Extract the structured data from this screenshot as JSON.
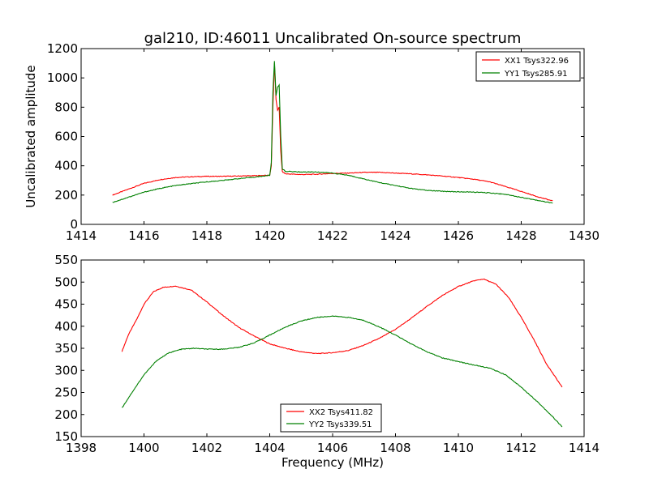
{
  "figure": {
    "title": "gal210, ID:46011 Uncalibrated On-source spectrum"
  },
  "chart_data": [
    {
      "type": "line",
      "title": "gal210, ID:46011 Uncalibrated On-source spectrum",
      "xlabel": "",
      "ylabel": "Uncalibrated amplitude",
      "xlim": [
        1414,
        1430
      ],
      "ylim": [
        0,
        1200
      ],
      "xticks": [
        1414,
        1416,
        1418,
        1420,
        1422,
        1424,
        1426,
        1428,
        1430
      ],
      "yticks": [
        0,
        200,
        400,
        600,
        800,
        1000,
        1200
      ],
      "legend_position": "top-right",
      "grid": false,
      "series": [
        {
          "name": "XX1 Tsys322.96",
          "color": "#ff0000",
          "x": [
            1415.0,
            1415.5,
            1416.0,
            1416.5,
            1417.0,
            1417.5,
            1418.0,
            1418.5,
            1419.0,
            1419.5,
            1420.0,
            1420.05,
            1420.1,
            1420.15,
            1420.2,
            1420.25,
            1420.3,
            1420.35,
            1420.4,
            1420.5,
            1421.0,
            1421.5,
            1422.0,
            1422.5,
            1423.0,
            1423.5,
            1424.0,
            1424.5,
            1425.0,
            1425.5,
            1426.0,
            1426.5,
            1427.0,
            1427.5,
            1428.0,
            1428.5,
            1429.0
          ],
          "y": [
            200,
            240,
            280,
            305,
            320,
            325,
            328,
            328,
            330,
            332,
            335,
            400,
            800,
            1100,
            850,
            780,
            800,
            500,
            360,
            345,
            340,
            342,
            348,
            350,
            355,
            355,
            350,
            345,
            338,
            330,
            320,
            308,
            290,
            258,
            225,
            190,
            160
          ]
        },
        {
          "name": "YY1 Tsys285.91",
          "color": "#008000",
          "x": [
            1415.0,
            1415.5,
            1416.0,
            1416.5,
            1417.0,
            1417.5,
            1418.0,
            1418.5,
            1419.0,
            1419.5,
            1420.0,
            1420.05,
            1420.1,
            1420.15,
            1420.2,
            1420.25,
            1420.3,
            1420.35,
            1420.4,
            1420.5,
            1421.0,
            1421.5,
            1422.0,
            1422.5,
            1423.0,
            1423.5,
            1424.0,
            1424.5,
            1425.0,
            1425.5,
            1426.0,
            1426.5,
            1427.0,
            1427.5,
            1428.0,
            1428.5,
            1429.0
          ],
          "y": [
            150,
            185,
            220,
            245,
            265,
            278,
            290,
            300,
            312,
            322,
            335,
            420,
            900,
            1115,
            880,
            940,
            950,
            600,
            380,
            362,
            358,
            358,
            350,
            335,
            310,
            285,
            265,
            245,
            232,
            226,
            222,
            220,
            215,
            205,
            185,
            165,
            145
          ]
        }
      ]
    },
    {
      "type": "line",
      "title": "",
      "xlabel": "Frequency (MHz)",
      "ylabel": "",
      "xlim": [
        1398,
        1414
      ],
      "ylim": [
        150,
        550
      ],
      "xticks": [
        1398,
        1400,
        1402,
        1404,
        1406,
        1408,
        1410,
        1412,
        1414
      ],
      "yticks": [
        150,
        200,
        250,
        300,
        350,
        400,
        450,
        500,
        550
      ],
      "legend_position": "bottom-center",
      "grid": false,
      "series": [
        {
          "name": "XX2 Tsys411.82",
          "color": "#ff0000",
          "x": [
            1399.3,
            1399.5,
            1399.8,
            1400.0,
            1400.3,
            1400.6,
            1401.0,
            1401.5,
            1402.0,
            1402.5,
            1403.0,
            1403.5,
            1404.0,
            1404.5,
            1405.0,
            1405.5,
            1406.0,
            1406.5,
            1407.0,
            1407.5,
            1408.0,
            1408.5,
            1409.0,
            1409.5,
            1410.0,
            1410.5,
            1410.8,
            1411.2,
            1411.6,
            1412.0,
            1412.4,
            1412.8,
            1413.3
          ],
          "y": [
            343,
            380,
            420,
            450,
            478,
            488,
            491,
            482,
            455,
            425,
            398,
            378,
            360,
            350,
            342,
            338,
            340,
            345,
            357,
            373,
            393,
            418,
            445,
            470,
            490,
            503,
            507,
            495,
            465,
            420,
            370,
            315,
            262
          ]
        },
        {
          "name": "YY2 Tsys339.51",
          "color": "#008000",
          "x": [
            1399.3,
            1399.6,
            1400.0,
            1400.4,
            1400.8,
            1401.2,
            1401.6,
            1402.0,
            1402.5,
            1403.0,
            1403.5,
            1404.0,
            1404.5,
            1405.0,
            1405.5,
            1406.0,
            1406.5,
            1407.0,
            1407.5,
            1408.0,
            1408.5,
            1409.0,
            1409.5,
            1410.0,
            1410.5,
            1411.0,
            1411.5,
            1412.0,
            1412.5,
            1413.0,
            1413.3
          ],
          "y": [
            215,
            248,
            290,
            322,
            340,
            348,
            350,
            348,
            348,
            352,
            362,
            380,
            398,
            412,
            420,
            423,
            420,
            413,
            398,
            380,
            360,
            342,
            328,
            320,
            312,
            305,
            290,
            262,
            230,
            195,
            172
          ]
        }
      ]
    }
  ]
}
